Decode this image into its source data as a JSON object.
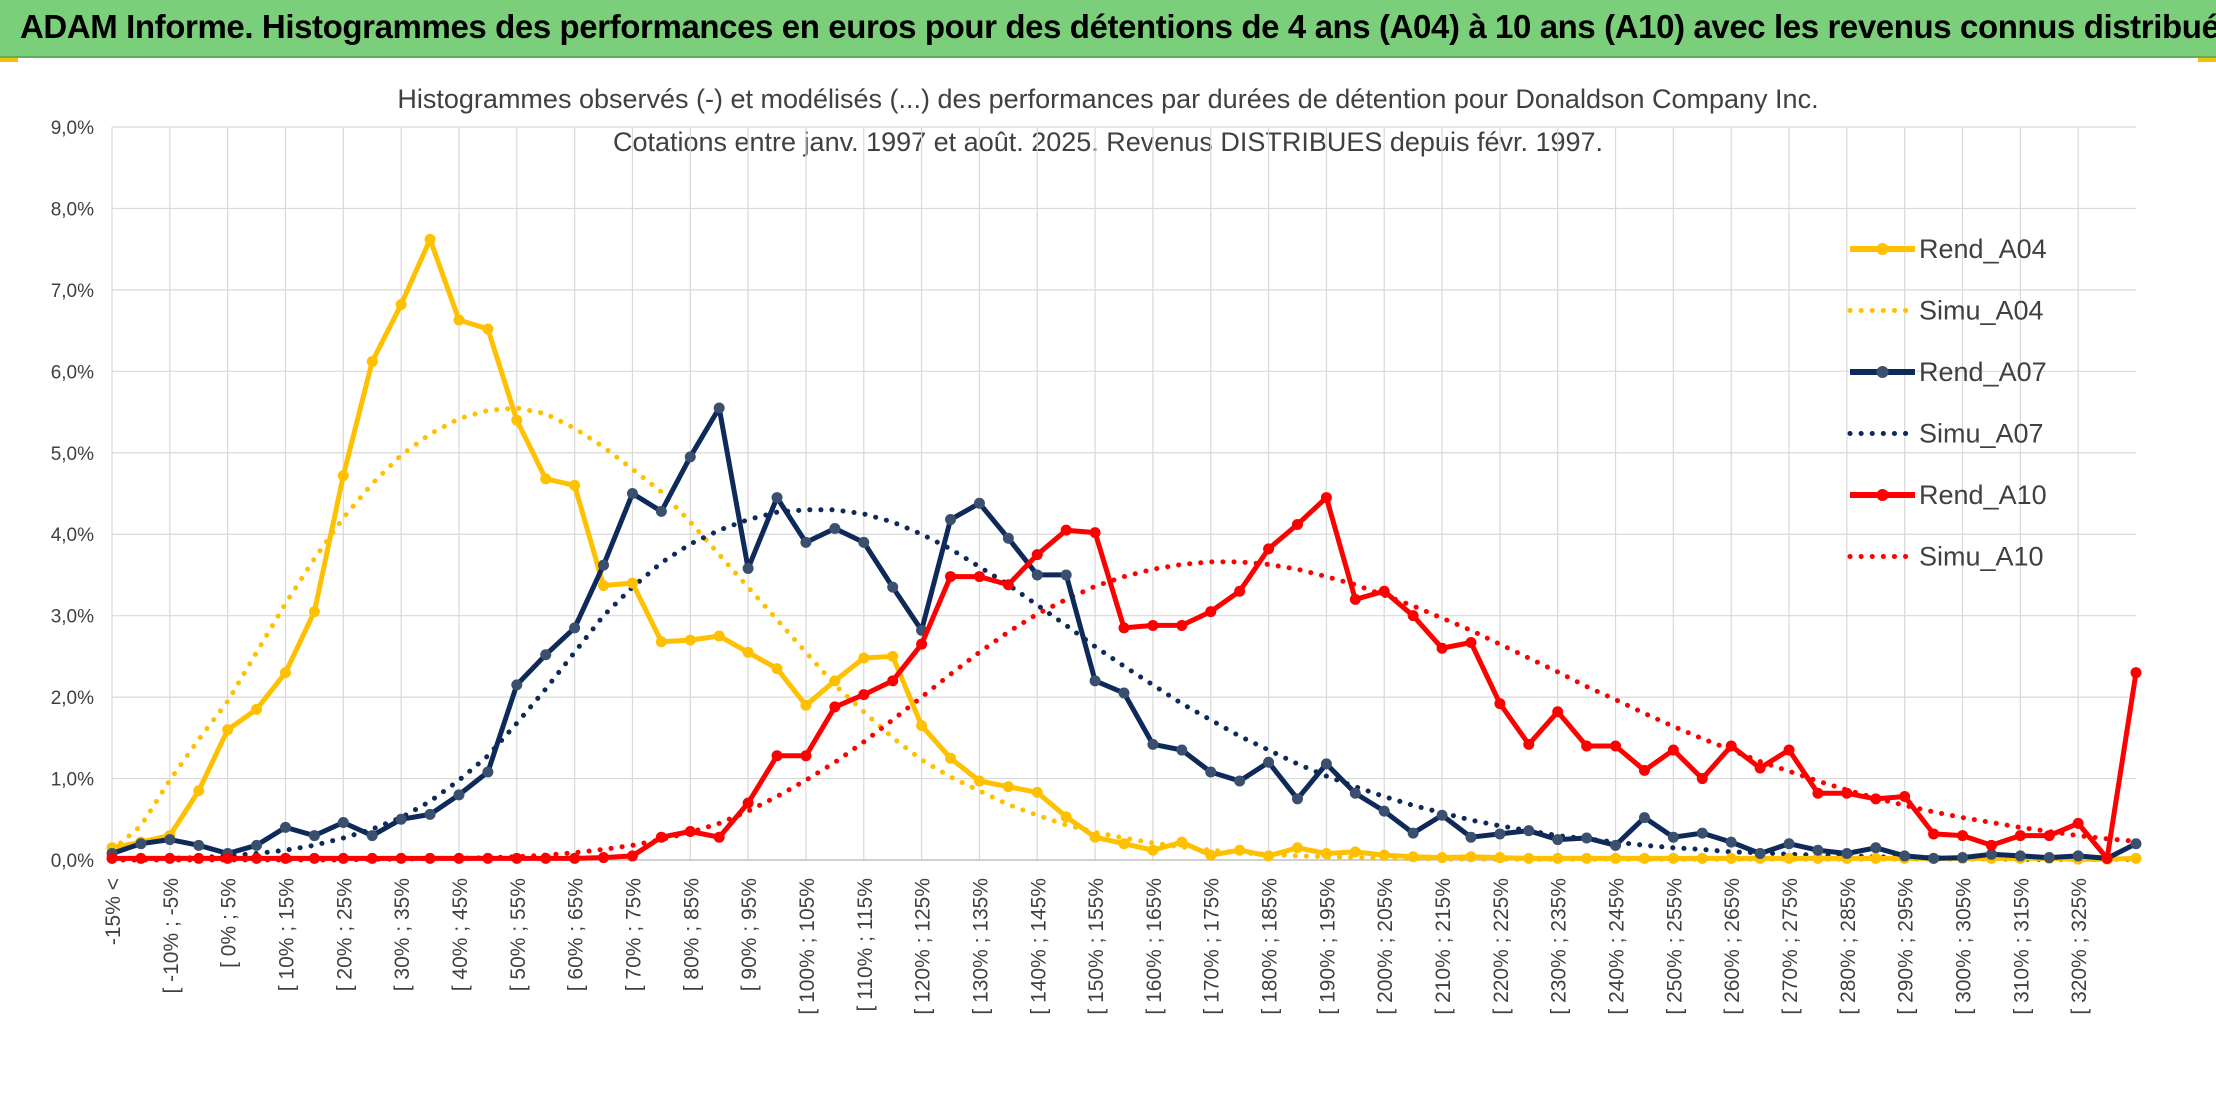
{
  "banner": {
    "title": "ADAM Informe. Histogrammes des performances en euros pour des détentions de 4 ans (A04) à 10 ans (A10) avec les revenus connus distribués"
  },
  "colors": {
    "banner_bg": "#7ccf7a",
    "accent": "#f2c200",
    "a04": "#FFC000",
    "a07": "#0E2A5A",
    "a10": "#FF0000",
    "grid": "#d9d9d9",
    "text": "#404040"
  },
  "chart_data": {
    "type": "line",
    "title": "Histogrammes observés (-) et modélisés (...) des performances par durées de détention pour Donaldson Company Inc.",
    "subtitle": "Cotations entre janv. 1997 et août. 2025. Revenus DISTRIBUES depuis févr. 1997.",
    "xlabel": "",
    "ylabel": "",
    "ylim": [
      0,
      9
    ],
    "y_unit": "%",
    "y_ticks": [
      "0,0%",
      "1,0%",
      "2,0%",
      "3,0%",
      "4,0%",
      "5,0%",
      "6,0%",
      "7,0%",
      "8,0%",
      "9,0%"
    ],
    "grid": true,
    "legend_position": "top-right",
    "x_tick_labels": [
      "-15% <",
      "[ -10% ; -5%",
      "[ 0% ; 5%",
      "[ 10% ; 15%",
      "[ 20% ; 25%",
      "[ 30% ; 35%",
      "[ 40% ; 45%",
      "[ 50% ; 55%",
      "[ 60% ; 65%",
      "[ 70% ; 75%",
      "[ 80% ; 85%",
      "[ 90% ; 95%",
      "[ 100% ; 105%",
      "[ 110% ; 115%",
      "[ 120% ; 125%",
      "[ 130% ; 135%",
      "[ 140% ; 145%",
      "[ 150% ; 155%",
      "[ 160% ; 165%",
      "[ 170% ; 175%",
      "[ 180% ; 185%",
      "[ 190% ; 195%",
      "[ 200% ; 205%",
      "[ 210% ; 215%",
      "[ 220% ; 225%",
      "[ 230% ; 235%",
      "[ 240% ; 245%",
      "[ 250% ; 255%",
      "[ 260% ; 265%",
      "[ 270% ; 275%",
      "[ 280% ; 285%",
      "[ 290% ; 295%",
      "[ 300% ; 305%",
      "[ 310% ; 315%",
      "[ 320% ; 325%"
    ],
    "series": [
      {
        "name": "Rend_A04",
        "style": "solid",
        "color": "#FFC000",
        "values": [
          0.15,
          0.22,
          0.3,
          0.85,
          1.6,
          1.85,
          2.3,
          3.05,
          4.72,
          6.12,
          6.82,
          7.62,
          6.63,
          6.52,
          5.4,
          4.68,
          4.6,
          3.37,
          3.4,
          2.68,
          2.7,
          2.75,
          2.55,
          2.35,
          1.9,
          2.2,
          2.48,
          2.5,
          1.65,
          1.25,
          0.97,
          0.9,
          0.83,
          0.53,
          0.28,
          0.2,
          0.12,
          0.22,
          0.06,
          0.12,
          0.05,
          0.15,
          0.08,
          0.1,
          0.06,
          0.04,
          0.03,
          0.04,
          0.03,
          0.02,
          0.02,
          0.02,
          0.02,
          0.02,
          0.02,
          0.02,
          0.02,
          0.02,
          0.02,
          0.02,
          0.02,
          0.02,
          0.02,
          0.02,
          0.02,
          0.02,
          0.02,
          0.02,
          0.01,
          0.01,
          0.02
        ]
      },
      {
        "name": "Simu_A04",
        "style": "dotted",
        "color": "#FFC000",
        "values": [
          0.12,
          0.42,
          0.98,
          1.48,
          1.95,
          2.55,
          3.15,
          3.7,
          4.2,
          4.62,
          4.97,
          5.23,
          5.42,
          5.52,
          5.55,
          5.48,
          5.3,
          5.07,
          4.8,
          4.52,
          4.15,
          3.75,
          3.35,
          2.95,
          2.55,
          2.15,
          1.82,
          1.5,
          1.23,
          1.02,
          0.85,
          0.68,
          0.55,
          0.43,
          0.34,
          0.27,
          0.21,
          0.16,
          0.12,
          0.09,
          0.07,
          0.05,
          0.04,
          0.03,
          0.02,
          0.02,
          0.01,
          0.01,
          0.01,
          0.01,
          0.01,
          0.01,
          0.01,
          0.01,
          0.01,
          0.01,
          0.01,
          0.01,
          0.01,
          0.01,
          0.01,
          0.01,
          0.01,
          0.01,
          0.01,
          0.01,
          0.01,
          0.01,
          0.01,
          0.01,
          0.01
        ]
      },
      {
        "name": "Rend_A07",
        "style": "solid",
        "color": "#0E2A5A",
        "values": [
          0.08,
          0.2,
          0.25,
          0.18,
          0.08,
          0.18,
          0.4,
          0.3,
          0.46,
          0.3,
          0.5,
          0.56,
          0.8,
          1.08,
          2.15,
          2.52,
          2.85,
          3.62,
          4.5,
          4.28,
          4.95,
          5.55,
          3.58,
          4.45,
          3.9,
          4.07,
          3.9,
          3.35,
          2.82,
          4.18,
          4.38,
          3.95,
          3.5,
          3.5,
          2.2,
          2.05,
          1.42,
          1.35,
          1.08,
          0.97,
          1.2,
          0.75,
          1.18,
          0.82,
          0.6,
          0.33,
          0.55,
          0.28,
          0.32,
          0.36,
          0.25,
          0.27,
          0.18,
          0.52,
          0.28,
          0.33,
          0.22,
          0.08,
          0.2,
          0.12,
          0.08,
          0.15,
          0.05,
          0.02,
          0.03,
          0.07,
          0.05,
          0.03,
          0.05,
          0.02,
          0.2
        ]
      },
      {
        "name": "Simu_A07",
        "style": "dotted",
        "color": "#0E2A5A",
        "values": [
          0.0,
          0.0,
          0.02,
          0.03,
          0.05,
          0.08,
          0.12,
          0.18,
          0.27,
          0.38,
          0.52,
          0.72,
          0.98,
          1.28,
          1.68,
          2.1,
          2.55,
          3.0,
          3.35,
          3.65,
          3.88,
          4.05,
          4.18,
          4.27,
          4.3,
          4.3,
          4.25,
          4.15,
          4.0,
          3.82,
          3.6,
          3.38,
          3.13,
          2.88,
          2.62,
          2.38,
          2.15,
          1.92,
          1.72,
          1.52,
          1.35,
          1.18,
          1.03,
          0.9,
          0.78,
          0.67,
          0.58,
          0.49,
          0.42,
          0.36,
          0.3,
          0.26,
          0.22,
          0.18,
          0.15,
          0.13,
          0.1,
          0.09,
          0.07,
          0.06,
          0.05,
          0.04,
          0.03,
          0.03,
          0.02,
          0.02,
          0.01,
          0.01,
          0.01,
          0.01,
          0.01
        ]
      },
      {
        "name": "Rend_A10",
        "style": "solid",
        "color": "#FF0000",
        "values": [
          0.02,
          0.02,
          0.02,
          0.02,
          0.02,
          0.02,
          0.02,
          0.02,
          0.02,
          0.02,
          0.02,
          0.02,
          0.02,
          0.02,
          0.02,
          0.02,
          0.02,
          0.03,
          0.05,
          0.28,
          0.35,
          0.28,
          0.7,
          1.28,
          1.28,
          1.88,
          2.03,
          2.2,
          2.65,
          3.48,
          3.48,
          3.38,
          3.75,
          4.05,
          4.02,
          2.85,
          2.88,
          2.88,
          3.05,
          3.3,
          3.82,
          4.12,
          4.45,
          3.2,
          3.3,
          3.0,
          2.6,
          2.67,
          1.92,
          1.42,
          1.82,
          1.4,
          1.4,
          1.1,
          1.35,
          1.0,
          1.4,
          1.13,
          1.35,
          0.82,
          0.82,
          0.75,
          0.78,
          0.32,
          0.3,
          0.18,
          0.3,
          0.3,
          0.45,
          0.02,
          2.3
        ]
      },
      {
        "name": "Simu_A10",
        "style": "dotted",
        "color": "#FF0000",
        "values": [
          0.0,
          0.0,
          0.0,
          0.0,
          0.0,
          0.0,
          0.0,
          0.0,
          0.0,
          0.01,
          0.01,
          0.02,
          0.02,
          0.03,
          0.04,
          0.06,
          0.09,
          0.13,
          0.18,
          0.25,
          0.34,
          0.45,
          0.6,
          0.78,
          0.98,
          1.2,
          1.45,
          1.72,
          2.0,
          2.28,
          2.55,
          2.8,
          3.02,
          3.2,
          3.36,
          3.48,
          3.57,
          3.63,
          3.66,
          3.66,
          3.63,
          3.57,
          3.48,
          3.38,
          3.25,
          3.12,
          2.97,
          2.82,
          2.65,
          2.48,
          2.31,
          2.13,
          1.97,
          1.8,
          1.64,
          1.49,
          1.35,
          1.21,
          1.09,
          0.97,
          0.86,
          0.76,
          0.67,
          0.59,
          0.52,
          0.46,
          0.4,
          0.35,
          0.3,
          0.26,
          0.23
        ]
      }
    ]
  }
}
